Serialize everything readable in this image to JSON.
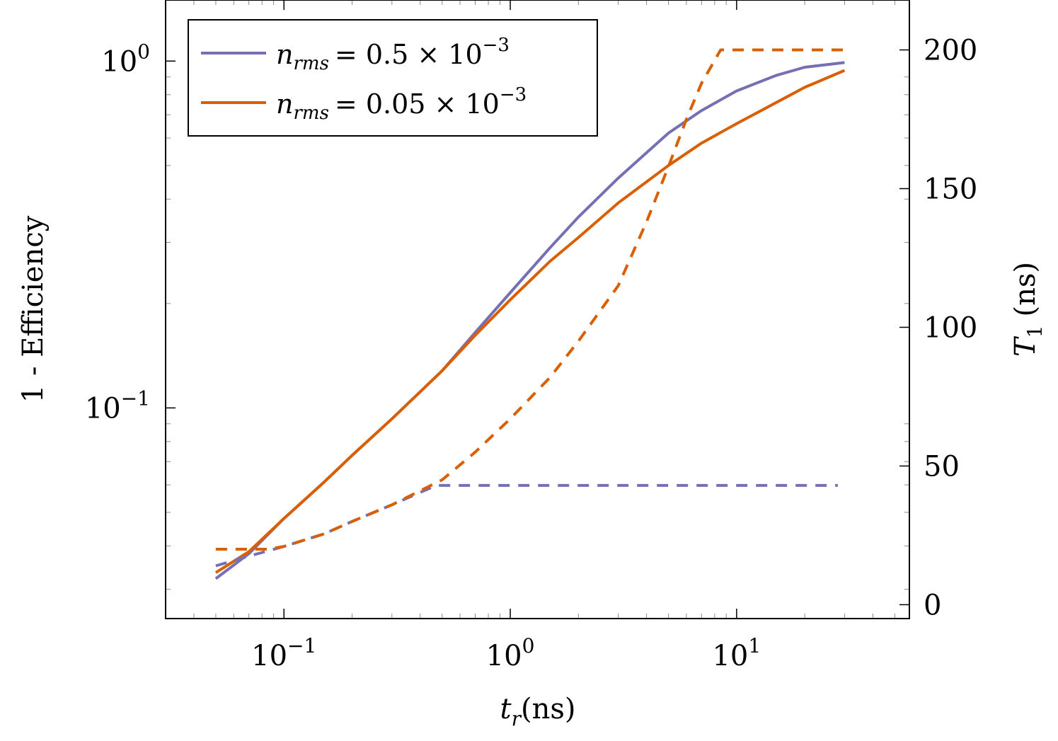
{
  "chart_data": {
    "type": "line",
    "x_scale": "log",
    "xlim": [
      0.03,
      58
    ],
    "xticks": [
      {
        "value": 0.1,
        "base": "10",
        "exp": "−1"
      },
      {
        "value": 1,
        "base": "10",
        "exp": "0"
      },
      {
        "value": 10,
        "base": "10",
        "exp": "1"
      }
    ],
    "xlabel": {
      "main": "t",
      "sub": "r",
      "unit": "(ns)"
    },
    "left_axis": {
      "scale": "log",
      "ylim": [
        0.0247,
        1.5
      ],
      "label": "1 - Efficiency",
      "ticks": [
        {
          "value": 0.1,
          "base": "10",
          "exp": "−1"
        },
        {
          "value": 1,
          "base": "10",
          "exp": "0"
        }
      ]
    },
    "right_axis": {
      "scale": "linear",
      "ylim": [
        -5,
        218
      ],
      "label": {
        "main": "T",
        "sub": "1",
        "unit": "(ns)"
      },
      "ticks": [
        "0",
        "50",
        "100",
        "150",
        "200"
      ]
    },
    "legend": {
      "position": "top-left",
      "entries": [
        {
          "var": "n",
          "sub": "rms",
          "value": "= 0.5 × 10",
          "exp": "−3",
          "color": "#7570b3"
        },
        {
          "var": "n",
          "sub": "rms",
          "value": "= 0.05 × 10",
          "exp": "−3",
          "color": "#d95f02"
        }
      ]
    },
    "series": [
      {
        "name": "n_rms = 0.5 × 10^−3",
        "color": "#7570b3",
        "axis": "left",
        "style": "solid",
        "x": [
          0.05,
          0.07,
          0.1,
          0.15,
          0.2,
          0.3,
          0.5,
          0.7,
          1.0,
          1.5,
          2,
          3,
          5,
          7,
          10,
          15,
          20,
          30
        ],
        "y": [
          0.0322,
          0.038,
          0.048,
          0.061,
          0.073,
          0.093,
          0.128,
          0.165,
          0.215,
          0.29,
          0.355,
          0.46,
          0.62,
          0.72,
          0.82,
          0.91,
          0.96,
          0.99
        ]
      },
      {
        "name": "n_rms = 0.05 × 10^−3",
        "color": "#d95f02",
        "axis": "left",
        "style": "solid",
        "x": [
          0.05,
          0.07,
          0.1,
          0.15,
          0.2,
          0.3,
          0.5,
          0.7,
          1.0,
          1.5,
          2,
          3,
          5,
          7,
          10,
          15,
          20,
          30
        ],
        "y": [
          0.0335,
          0.0385,
          0.048,
          0.061,
          0.073,
          0.093,
          0.128,
          0.162,
          0.205,
          0.265,
          0.31,
          0.39,
          0.5,
          0.58,
          0.66,
          0.76,
          0.84,
          0.94
        ]
      },
      {
        "name": "T1 (0.5 × 10^−3)",
        "color": "#7570b3",
        "axis": "right",
        "style": "dashed",
        "x": [
          0.05,
          0.07,
          0.1,
          0.15,
          0.2,
          0.3,
          0.47,
          1,
          3,
          10,
          28
        ],
        "y": [
          14,
          17.5,
          21,
          25.5,
          30,
          36,
          43,
          43,
          43,
          43,
          43
        ]
      },
      {
        "name": "T1 (0.05 × 10^−3)",
        "color": "#d95f02",
        "axis": "right",
        "style": "dashed",
        "x": [
          0.05,
          0.085,
          0.1,
          0.15,
          0.2,
          0.3,
          0.5,
          0.7,
          1.0,
          1.5,
          2,
          3,
          4,
          5,
          6,
          7,
          8.5,
          10,
          20,
          30
        ],
        "y": [
          20,
          20,
          21,
          25.5,
          30,
          36,
          45,
          55,
          67,
          82,
          95,
          115,
          138,
          158,
          175,
          188,
          200,
          200,
          200,
          200
        ]
      }
    ]
  }
}
